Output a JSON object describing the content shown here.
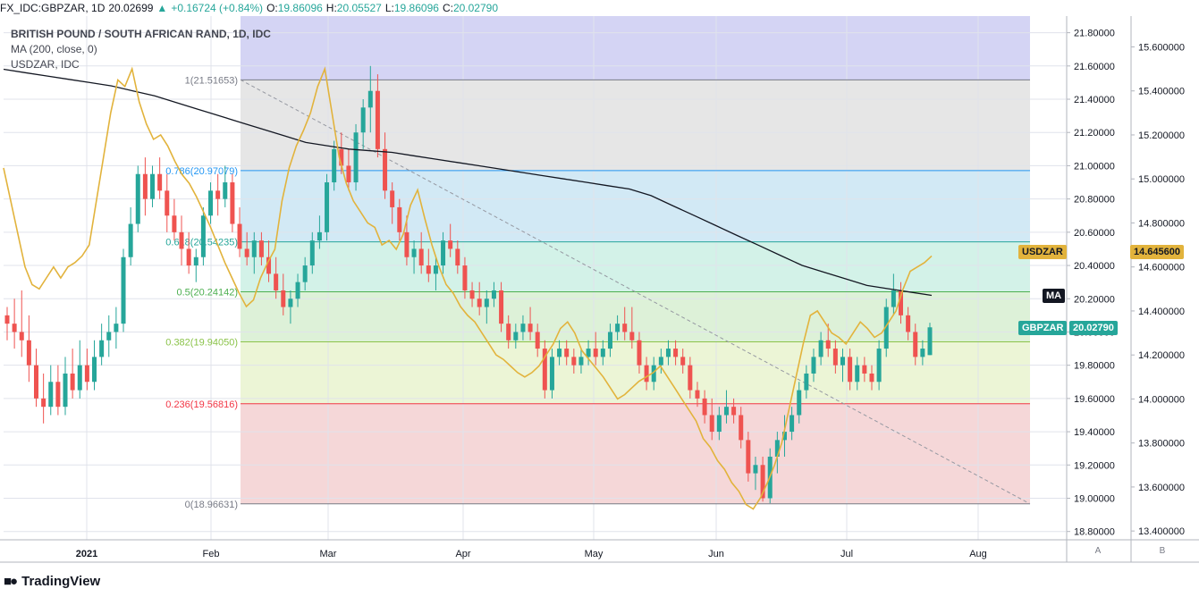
{
  "header": {
    "symbol": "FX_IDC:GBPZAR, 1D",
    "last": "20.02699",
    "change": "+0.16724 (+0.84%)",
    "open_label": "O:",
    "open": "19.86096",
    "high_label": "H:",
    "high": "20.05527",
    "low_label": "L:",
    "low": "19.86096",
    "close_label": "C:",
    "close": "20.02790"
  },
  "legend": {
    "title": "BRITISH POUND / SOUTH AFRICAN RAND, 1D, IDC",
    "ma": "MA (200, close, 0)",
    "overlay": "USDZAR, IDC"
  },
  "badges": {
    "usdzar_name": "USDZAR",
    "usdzar_value": "14.645600",
    "ma_name": "MA",
    "gbpzar_name": "GBPZAR",
    "gbpzar_value": "20.02790"
  },
  "scale_tags": {
    "a": "A",
    "b": "B"
  },
  "brand": {
    "name": "TradingView"
  },
  "colors": {
    "up": "#26a69a",
    "down": "#ef5350",
    "ma": "#131722",
    "usdzar": "#e2b33c",
    "grid": "#e0e3eb"
  },
  "chart_data": {
    "type": "candlestick",
    "title": "BRITISH POUND / SOUTH AFRICAN RAND, 1D, IDC",
    "x_labels": [
      "2021",
      "Feb",
      "Mar",
      "Apr",
      "May",
      "Jun",
      "Jul",
      "Aug"
    ],
    "y_left_ticks": [
      18.8,
      19.0,
      19.2,
      19.4,
      19.6,
      19.8,
      20.0,
      20.2,
      20.4,
      20.6,
      20.8,
      21.0,
      21.2,
      21.4,
      21.6,
      21.8
    ],
    "y_left_range": [
      18.75,
      21.9
    ],
    "y_right_ticks": [
      13.4,
      13.6,
      13.8,
      14.0,
      14.2,
      14.4,
      14.6,
      14.8,
      15.0,
      15.2,
      15.4,
      15.6
    ],
    "y_right_range": [
      13.36,
      15.74
    ],
    "fibonacci": [
      {
        "ratio": "1",
        "price": 21.51653,
        "label": "1(21.51653)",
        "color": "#787b86",
        "fill": "#e6e6e6"
      },
      {
        "ratio": "0.786",
        "price": 20.97079,
        "label": "0.786(20.97079)",
        "color": "#2196f3",
        "fill": "#d2e9f5"
      },
      {
        "ratio": "0.618",
        "price": 20.54235,
        "label": "0.618(20.54235)",
        "color": "#26a69a",
        "fill": "#d3f2e8"
      },
      {
        "ratio": "0.5",
        "price": 20.24142,
        "label": "0.5(20.24142)",
        "color": "#4caf50",
        "fill": "#ddf1d8"
      },
      {
        "ratio": "0.382",
        "price": 19.9405,
        "label": "0.382(19.94050)",
        "color": "#8bc34a",
        "fill": "#ecf5d6"
      },
      {
        "ratio": "0.236",
        "price": 19.56816,
        "label": "0.236(19.56816)",
        "color": "#f23645",
        "fill": "#f5d7d8"
      },
      {
        "ratio": "0",
        "price": 18.96631,
        "label": "0(18.96631)",
        "color": "#787b86",
        "fill": null
      }
    ],
    "fib_top_fill": "#d4d4f4",
    "series": [
      {
        "name": "GBPZAR",
        "type": "candlestick",
        "ohlc": [
          [
            20.1,
            20.15,
            19.95,
            20.05
          ],
          [
            20.05,
            20.2,
            19.9,
            20.0
          ],
          [
            20.0,
            20.25,
            19.85,
            19.95
          ],
          [
            19.95,
            20.1,
            19.7,
            19.8
          ],
          [
            19.8,
            19.9,
            19.55,
            19.6
          ],
          [
            19.6,
            19.75,
            19.45,
            19.55
          ],
          [
            19.55,
            19.8,
            19.5,
            19.7
          ],
          [
            19.7,
            19.8,
            19.5,
            19.55
          ],
          [
            19.55,
            19.85,
            19.5,
            19.75
          ],
          [
            19.75,
            19.9,
            19.6,
            19.65
          ],
          [
            19.65,
            19.95,
            19.6,
            19.8
          ],
          [
            19.8,
            19.9,
            19.65,
            19.7
          ],
          [
            19.7,
            19.95,
            19.65,
            19.85
          ],
          [
            19.85,
            20.05,
            19.8,
            19.95
          ],
          [
            19.95,
            20.1,
            19.85,
            20.0
          ],
          [
            20.0,
            20.15,
            19.9,
            20.05
          ],
          [
            20.05,
            20.5,
            20.0,
            20.45
          ],
          [
            20.45,
            20.75,
            20.4,
            20.65
          ],
          [
            20.65,
            21.0,
            20.6,
            20.95
          ],
          [
            20.95,
            21.05,
            20.7,
            20.8
          ],
          [
            20.8,
            21.0,
            20.75,
            20.95
          ],
          [
            20.95,
            21.05,
            20.8,
            20.85
          ],
          [
            20.85,
            20.95,
            20.6,
            20.7
          ],
          [
            20.7,
            20.8,
            20.55,
            20.6
          ],
          [
            20.6,
            20.7,
            20.4,
            20.5
          ],
          [
            20.5,
            20.6,
            20.35,
            20.4
          ],
          [
            20.4,
            20.5,
            20.3,
            20.45
          ],
          [
            20.45,
            20.75,
            20.4,
            20.7
          ],
          [
            20.7,
            20.9,
            20.65,
            20.85
          ],
          [
            20.85,
            20.95,
            20.7,
            20.8
          ],
          [
            20.8,
            21.0,
            20.75,
            20.9
          ],
          [
            20.9,
            20.95,
            20.6,
            20.65
          ],
          [
            20.65,
            20.75,
            20.45,
            20.5
          ],
          [
            20.5,
            20.6,
            20.4,
            20.45
          ],
          [
            20.45,
            20.6,
            20.35,
            20.55
          ],
          [
            20.55,
            20.6,
            20.4,
            20.45
          ],
          [
            20.45,
            20.55,
            20.3,
            20.35
          ],
          [
            20.35,
            20.45,
            20.2,
            20.25
          ],
          [
            20.25,
            20.35,
            20.1,
            20.15
          ],
          [
            20.15,
            20.25,
            20.05,
            20.2
          ],
          [
            20.2,
            20.35,
            20.15,
            20.3
          ],
          [
            20.3,
            20.45,
            20.25,
            20.4
          ],
          [
            20.4,
            20.6,
            20.35,
            20.55
          ],
          [
            20.55,
            20.7,
            20.5,
            20.6
          ],
          [
            20.6,
            20.95,
            20.55,
            20.9
          ],
          [
            20.9,
            21.15,
            20.85,
            21.1
          ],
          [
            21.1,
            21.2,
            20.95,
            21.0
          ],
          [
            21.0,
            21.1,
            20.85,
            20.9
          ],
          [
            20.9,
            21.25,
            20.85,
            21.2
          ],
          [
            21.2,
            21.4,
            21.1,
            21.35
          ],
          [
            21.35,
            21.6,
            21.2,
            21.45
          ],
          [
            21.45,
            21.55,
            21.05,
            21.1
          ],
          [
            21.1,
            21.2,
            20.8,
            20.85
          ],
          [
            20.85,
            20.9,
            20.65,
            20.75
          ],
          [
            20.75,
            20.8,
            20.55,
            20.6
          ],
          [
            20.6,
            20.7,
            20.4,
            20.45
          ],
          [
            20.45,
            20.55,
            20.35,
            20.5
          ],
          [
            20.5,
            20.6,
            20.35,
            20.4
          ],
          [
            20.4,
            20.5,
            20.3,
            20.35
          ],
          [
            20.35,
            20.45,
            20.25,
            20.4
          ],
          [
            20.4,
            20.6,
            20.35,
            20.55
          ],
          [
            20.55,
            20.65,
            20.45,
            20.5
          ],
          [
            20.5,
            20.55,
            20.35,
            20.4
          ],
          [
            20.4,
            20.45,
            20.2,
            20.25
          ],
          [
            20.25,
            20.3,
            20.15,
            20.2
          ],
          [
            20.2,
            20.3,
            20.1,
            20.15
          ],
          [
            20.15,
            20.25,
            20.05,
            20.2
          ],
          [
            20.2,
            20.3,
            20.15,
            20.25
          ],
          [
            20.25,
            20.3,
            20.0,
            20.05
          ],
          [
            20.05,
            20.1,
            19.9,
            19.95
          ],
          [
            19.95,
            20.05,
            19.9,
            20.0
          ],
          [
            20.0,
            20.1,
            19.95,
            20.05
          ],
          [
            20.05,
            20.15,
            19.95,
            20.0
          ],
          [
            20.0,
            20.05,
            19.85,
            19.9
          ],
          [
            19.9,
            19.95,
            19.6,
            19.65
          ],
          [
            19.65,
            19.9,
            19.6,
            19.85
          ],
          [
            19.85,
            19.95,
            19.8,
            19.9
          ],
          [
            19.9,
            19.95,
            19.8,
            19.85
          ],
          [
            19.85,
            19.9,
            19.75,
            19.8
          ],
          [
            19.8,
            19.9,
            19.75,
            19.85
          ],
          [
            19.85,
            19.95,
            19.8,
            19.9
          ],
          [
            19.9,
            20.0,
            19.8,
            19.85
          ],
          [
            19.85,
            19.95,
            19.8,
            19.9
          ],
          [
            19.9,
            20.05,
            19.85,
            20.0
          ],
          [
            20.0,
            20.1,
            19.95,
            20.05
          ],
          [
            20.05,
            20.15,
            19.95,
            20.0
          ],
          [
            20.0,
            20.15,
            19.9,
            19.95
          ],
          [
            19.95,
            20.0,
            19.75,
            19.8
          ],
          [
            19.8,
            19.85,
            19.65,
            19.7
          ],
          [
            19.7,
            19.85,
            19.65,
            19.8
          ],
          [
            19.8,
            19.9,
            19.75,
            19.85
          ],
          [
            19.85,
            19.95,
            19.8,
            19.9
          ],
          [
            19.9,
            19.95,
            19.8,
            19.85
          ],
          [
            19.85,
            19.9,
            19.75,
            19.8
          ],
          [
            19.8,
            19.85,
            19.6,
            19.65
          ],
          [
            19.65,
            19.7,
            19.55,
            19.6
          ],
          [
            19.6,
            19.65,
            19.45,
            19.5
          ],
          [
            19.5,
            19.6,
            19.35,
            19.4
          ],
          [
            19.4,
            19.55,
            19.35,
            19.5
          ],
          [
            19.5,
            19.65,
            19.45,
            19.55
          ],
          [
            19.55,
            19.6,
            19.45,
            19.5
          ],
          [
            19.5,
            19.55,
            19.3,
            19.35
          ],
          [
            19.35,
            19.4,
            19.1,
            19.15
          ],
          [
            19.15,
            19.25,
            19.05,
            19.2
          ],
          [
            19.2,
            19.25,
            18.98,
            19.0
          ],
          [
            19.0,
            19.3,
            18.97,
            19.25
          ],
          [
            19.25,
            19.4,
            19.15,
            19.35
          ],
          [
            19.35,
            19.5,
            19.25,
            19.4
          ],
          [
            19.4,
            19.55,
            19.35,
            19.5
          ],
          [
            19.5,
            19.7,
            19.45,
            19.65
          ],
          [
            19.65,
            19.8,
            19.6,
            19.75
          ],
          [
            19.75,
            19.9,
            19.7,
            19.85
          ],
          [
            19.85,
            20.0,
            19.8,
            19.95
          ],
          [
            19.95,
            20.05,
            19.85,
            19.9
          ],
          [
            19.9,
            19.95,
            19.75,
            19.8
          ],
          [
            19.8,
            19.9,
            19.7,
            19.85
          ],
          [
            19.85,
            19.9,
            19.65,
            19.7
          ],
          [
            19.7,
            19.85,
            19.65,
            19.8
          ],
          [
            19.8,
            19.85,
            19.7,
            19.75
          ],
          [
            19.75,
            19.8,
            19.65,
            19.7
          ],
          [
            19.7,
            19.95,
            19.65,
            19.9
          ],
          [
            19.9,
            20.2,
            19.85,
            20.15
          ],
          [
            20.15,
            20.35,
            20.1,
            20.25
          ],
          [
            20.25,
            20.3,
            20.05,
            20.1
          ],
          [
            20.1,
            20.15,
            19.95,
            20.0
          ],
          [
            20.0,
            20.05,
            19.8,
            19.85
          ],
          [
            19.85,
            19.95,
            19.8,
            19.9
          ],
          [
            19.86096,
            20.05527,
            19.86096,
            20.0279
          ]
        ]
      },
      {
        "name": "USDZAR",
        "type": "line",
        "values": [
          15.05,
          14.9,
          14.75,
          14.6,
          14.52,
          14.5,
          14.55,
          14.6,
          14.55,
          14.6,
          14.62,
          14.65,
          14.7,
          14.9,
          15.1,
          15.3,
          15.45,
          15.42,
          15.5,
          15.35,
          15.25,
          15.18,
          15.2,
          15.15,
          15.08,
          15.02,
          14.98,
          14.92,
          14.85,
          14.78,
          14.7,
          14.62,
          14.55,
          14.48,
          14.42,
          14.45,
          14.55,
          14.62,
          14.68,
          14.9,
          15.05,
          15.15,
          15.22,
          15.3,
          15.42,
          15.5,
          15.3,
          15.1,
          14.98,
          14.9,
          14.85,
          14.8,
          14.78,
          14.7,
          14.72,
          14.68,
          14.75,
          14.88,
          14.95,
          14.82,
          14.7,
          14.6,
          14.52,
          14.48,
          14.42,
          14.38,
          14.35,
          14.3,
          14.25,
          14.2,
          14.18,
          14.15,
          14.12,
          14.1,
          14.12,
          14.15,
          14.2,
          14.25,
          14.32,
          14.35,
          14.3,
          14.22,
          14.18,
          14.14,
          14.1,
          14.05,
          14.0,
          14.02,
          14.05,
          14.08,
          14.1,
          14.12,
          14.15,
          14.1,
          14.05,
          14.0,
          13.95,
          13.9,
          13.82,
          13.78,
          13.72,
          13.68,
          13.62,
          13.58,
          13.52,
          13.5,
          13.55,
          13.62,
          13.7,
          13.8,
          13.95,
          14.1,
          14.25,
          14.38,
          14.4,
          14.35,
          14.3,
          14.28,
          14.25,
          14.3,
          14.35,
          14.32,
          14.28,
          14.3,
          14.35,
          14.4,
          14.5,
          14.58,
          14.6,
          14.62,
          14.65
        ]
      },
      {
        "name": "MA (200, close, 0)",
        "type": "line",
        "values": [
          21.58,
          21.56,
          21.54,
          21.52,
          21.5,
          21.48,
          21.45,
          21.42,
          21.38,
          21.34,
          21.3,
          21.26,
          21.22,
          21.18,
          21.14,
          21.12,
          21.1,
          21.09,
          21.08,
          21.06,
          21.04,
          21.02,
          21.0,
          20.98,
          20.96,
          20.94,
          20.92,
          20.9,
          20.88,
          20.86,
          20.82,
          20.76,
          20.7,
          20.64,
          20.58,
          20.52,
          20.46,
          20.4,
          20.36,
          20.32,
          20.28,
          20.26,
          20.24,
          20.22
        ]
      }
    ]
  }
}
